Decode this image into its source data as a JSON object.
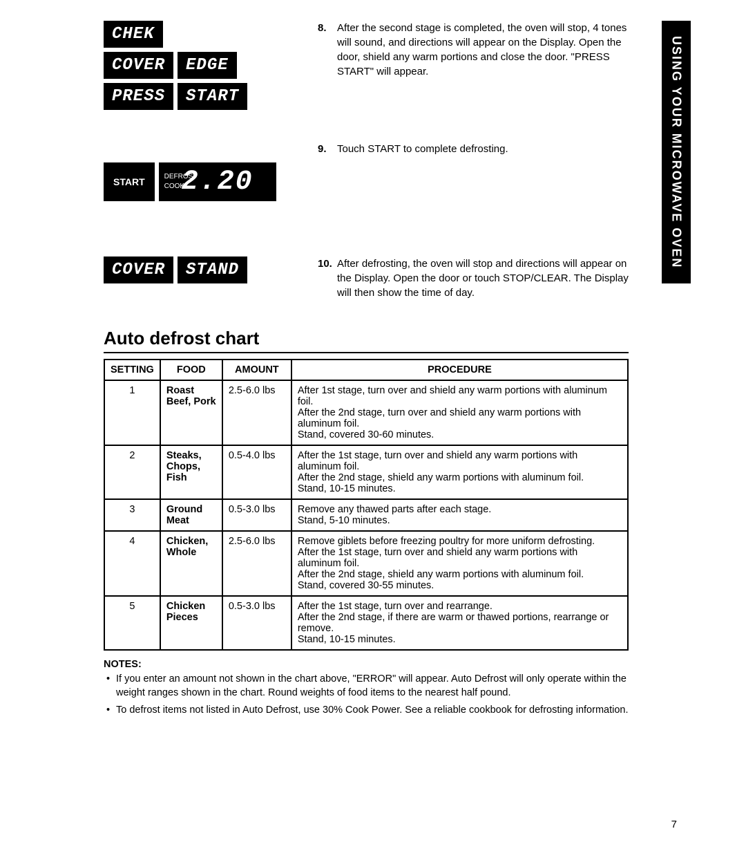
{
  "sideTab": "USING YOUR MICROWAVE OVEN",
  "displays": {
    "row1": [
      "CHEK"
    ],
    "row2": [
      "COVER",
      "EDGE"
    ],
    "row3": [
      "PRESS",
      "START"
    ],
    "startLabel": "START",
    "bigMini": [
      "DEFROST",
      "COOK"
    ],
    "bigValue": "2.20",
    "row4": [
      "COVER",
      "STAND"
    ]
  },
  "steps": [
    {
      "n": "8.",
      "text": "After the second stage is completed, the oven will stop, 4 tones will sound, and directions will appear on the Display. Open the door, shield any warm portions and close the door. \"PRESS START\" will appear."
    },
    {
      "n": "9.",
      "text": "Touch START to complete defrosting."
    },
    {
      "n": "10.",
      "text": "After defrosting, the oven will stop and directions will appear on the Display. Open the door or touch STOP/CLEAR. The Display will then show the time of day."
    }
  ],
  "chartTitle": "Auto defrost chart",
  "chart": {
    "columns": [
      "SETTING",
      "FOOD",
      "AMOUNT",
      "PROCEDURE"
    ],
    "rows": [
      {
        "setting": "1",
        "food": "Roast Beef, Pork",
        "amount": "2.5-6.0 lbs",
        "procedure": "After 1st stage, turn over and shield any warm portions with aluminum foil.\nAfter the 2nd stage, turn over and shield any warm portions with aluminum foil.\nStand, covered 30-60 minutes."
      },
      {
        "setting": "2",
        "food": "Steaks, Chops, Fish",
        "amount": "0.5-4.0 lbs",
        "procedure": "After the 1st stage, turn over and shield any warm portions with aluminum foil.\nAfter the 2nd stage, shield any warm portions with aluminum foil.\nStand, 10-15 minutes."
      },
      {
        "setting": "3",
        "food": "Ground Meat",
        "amount": "0.5-3.0 lbs",
        "procedure": "Remove any thawed parts after each stage.\nStand, 5-10 minutes."
      },
      {
        "setting": "4",
        "food": "Chicken, Whole",
        "amount": "2.5-6.0 lbs",
        "procedure": "Remove giblets before freezing poultry for more uniform defrosting.\nAfter the 1st stage, turn over and shield any warm portions with aluminum foil.\nAfter the 2nd stage, shield any warm portions with aluminum foil.\nStand, covered 30-55 minutes."
      },
      {
        "setting": "5",
        "food": "Chicken Pieces",
        "amount": "0.5-3.0 lbs",
        "procedure": "After the 1st stage, turn over and rearrange.\nAfter the 2nd stage, if there are warm or thawed portions, rearrange or remove.\nStand, 10-15 minutes."
      }
    ]
  },
  "notesTitle": "NOTES:",
  "notes": [
    "If you enter an amount not shown in the chart above, \"ERROR\" will appear. Auto Defrost will only operate within the weight ranges shown in the chart. Round weights of food items to the nearest half pound.",
    "To defrost items not listed in Auto Defrost, use 30% Cook Power. See a reliable cookbook for defrosting information."
  ],
  "pageNumber": "7"
}
